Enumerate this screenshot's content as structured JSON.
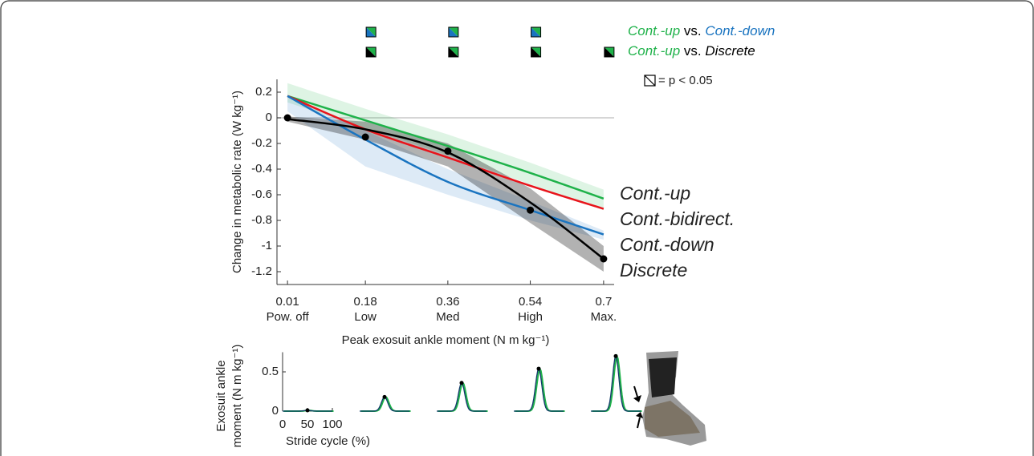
{
  "chart_data": {
    "type": "line",
    "xlabel": "Peak exosuit ankle moment (N m kg⁻¹)",
    "ylabel": "Change in metabolic rate (W kg⁻¹)",
    "xlim": [
      -0.013,
      0.723
    ],
    "ylim": [
      -1.3,
      0.3
    ],
    "xticks": [
      0.01,
      0.18,
      0.36,
      0.54,
      0.7
    ],
    "xtick_sublabels": [
      "Pow. off",
      "Low",
      "Med",
      "High",
      "Max."
    ],
    "yticks": [
      0.2,
      0,
      -0.2,
      -0.4,
      -0.6,
      -0.8,
      -1,
      -1.2
    ],
    "x": [
      0.01,
      0.18,
      0.36,
      0.54,
      0.7
    ],
    "series": [
      {
        "name": "Cont.-up",
        "color": "#1fb24a",
        "values": [
          0.17,
          -0.02,
          -0.22,
          -0.43,
          -0.63
        ],
        "band_lower": [
          0.12,
          -0.08,
          -0.29,
          -0.52,
          -0.72
        ],
        "band_upper": [
          0.27,
          0.07,
          -0.13,
          -0.35,
          -0.56
        ]
      },
      {
        "name": "Cont.-bidirect.",
        "color": "#e8141b",
        "values": [
          0.17,
          -0.09,
          -0.31,
          -0.53,
          -0.71
        ]
      },
      {
        "name": "Cont.-down",
        "color": "#1a74c0",
        "values": [
          0.17,
          -0.17,
          -0.5,
          -0.72,
          -0.91
        ],
        "band_lower": [
          0.05,
          -0.38,
          -0.6,
          -0.8,
          -0.95
        ],
        "band_upper": [
          0.17,
          -0.1,
          -0.4,
          -0.65,
          -0.88
        ]
      },
      {
        "name": "Discrete",
        "color": "#000000",
        "values": [
          -0.01,
          -0.09,
          -0.27,
          -0.66,
          -1.1
        ],
        "points": [
          0,
          -0.15,
          -0.26,
          -0.72,
          -1.1
        ],
        "band_lower": [
          -0.03,
          -0.17,
          -0.38,
          -0.82,
          -1.2
        ],
        "band_upper": [
          0.01,
          -0.03,
          -0.2,
          -0.55,
          -1.0
        ]
      }
    ],
    "significance": [
      {
        "parts": [
          {
            "text": "Cont.-up",
            "color": "#1fb24a"
          },
          {
            "text": " vs. ",
            "color": "#000000"
          },
          {
            "text": "Cont.-down",
            "color": "#1a74c0"
          }
        ],
        "at": [
          0.18,
          0.36,
          0.54
        ]
      },
      {
        "parts": [
          {
            "text": "Cont.-up",
            "color": "#1fb24a"
          },
          {
            "text": " vs. ",
            "color": "#000000"
          },
          {
            "text": "Discrete",
            "color": "#000000",
            "italic": true
          }
        ],
        "at": [
          0.18,
          0.36,
          0.54,
          0.7
        ]
      }
    ],
    "significance_key": "= p < 0.05",
    "inset": {
      "ylabel": [
        "Exosuit ankle",
        "moment (N m kg⁻¹)"
      ],
      "xlabel": "Stride cycle (%)",
      "ylim": [
        0,
        0.75
      ],
      "yticks": [
        0,
        0.5
      ],
      "xlim": [
        0,
        100
      ],
      "xticks": [
        0,
        50,
        100
      ],
      "peaks": [
        0.01,
        0.18,
        0.36,
        0.54,
        0.7
      ],
      "peak_x": 50
    }
  }
}
